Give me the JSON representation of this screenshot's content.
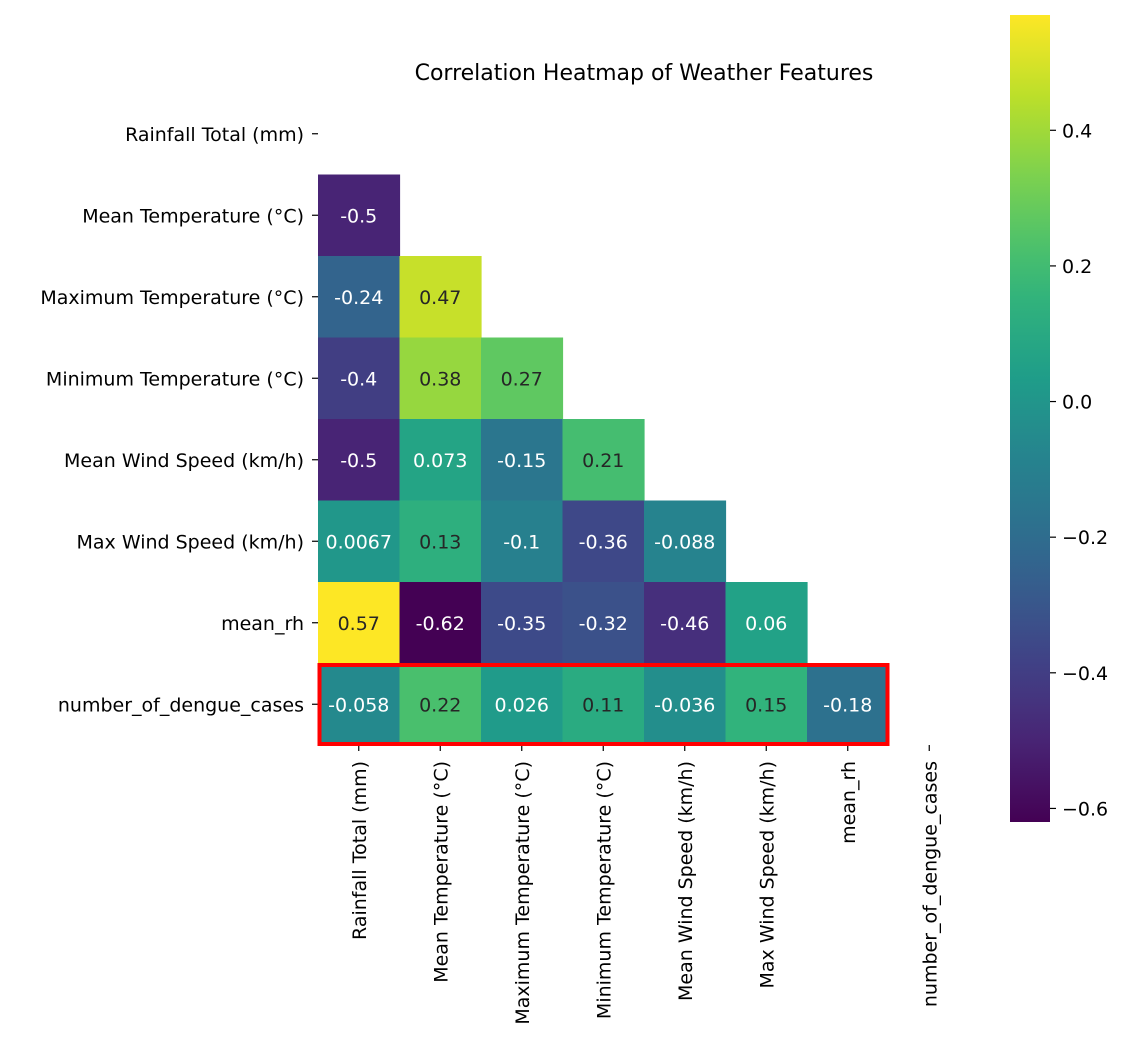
{
  "chart_data": {
    "type": "heatmap",
    "title": "Correlation Heatmap of Weather Features",
    "colormap": "viridis",
    "mask": "upper-triangle",
    "labels": [
      "Rainfall Total (mm)",
      "Mean Temperature (°C)",
      "Maximum Temperature (°C)",
      "Minimum Temperature (°C)",
      "Mean Wind Speed (km/h)",
      "Max Wind Speed (km/h)",
      "mean_rh",
      "number_of_dengue_cases"
    ],
    "matrix": [
      [
        null,
        null,
        null,
        null,
        null,
        null,
        null,
        null
      ],
      [
        -0.5,
        null,
        null,
        null,
        null,
        null,
        null,
        null
      ],
      [
        -0.24,
        0.47,
        null,
        null,
        null,
        null,
        null,
        null
      ],
      [
        -0.4,
        0.38,
        0.27,
        null,
        null,
        null,
        null,
        null
      ],
      [
        -0.5,
        0.073,
        -0.15,
        0.21,
        null,
        null,
        null,
        null
      ],
      [
        0.0067,
        0.13,
        -0.1,
        -0.36,
        -0.088,
        null,
        null,
        null
      ],
      [
        0.57,
        -0.62,
        -0.35,
        -0.32,
        -0.46,
        0.06,
        null,
        null
      ],
      [
        -0.058,
        0.22,
        0.026,
        0.11,
        -0.036,
        0.15,
        -0.18,
        null
      ]
    ],
    "cell_text": [
      [
        null,
        null,
        null,
        null,
        null,
        null,
        null,
        null
      ],
      [
        "-0.5",
        null,
        null,
        null,
        null,
        null,
        null,
        null
      ],
      [
        "-0.24",
        "0.47",
        null,
        null,
        null,
        null,
        null,
        null
      ],
      [
        "-0.4",
        "0.38",
        "0.27",
        null,
        null,
        null,
        null,
        null
      ],
      [
        "-0.5",
        "0.073",
        "-0.15",
        "0.21",
        null,
        null,
        null,
        null
      ],
      [
        "0.0067",
        "0.13",
        "-0.1",
        "-0.36",
        "-0.088",
        null,
        null,
        null
      ],
      [
        "0.57",
        "-0.62",
        "-0.35",
        "-0.32",
        "-0.46",
        "0.06",
        null,
        null
      ],
      [
        "-0.058",
        "0.22",
        "0.026",
        "0.11",
        "-0.036",
        "0.15",
        "-0.18",
        null
      ]
    ],
    "colorbar": {
      "vmin": -0.62,
      "vmax": 0.57,
      "ticks": [
        0.4,
        0.2,
        0.0,
        -0.2,
        -0.4,
        -0.6
      ],
      "tick_labels": [
        "0.4",
        "0.2",
        "0.0",
        "−0.2",
        "−0.4",
        "−0.6"
      ]
    },
    "highlight": {
      "row": "number_of_dengue_cases",
      "color": "#ff0000"
    }
  }
}
